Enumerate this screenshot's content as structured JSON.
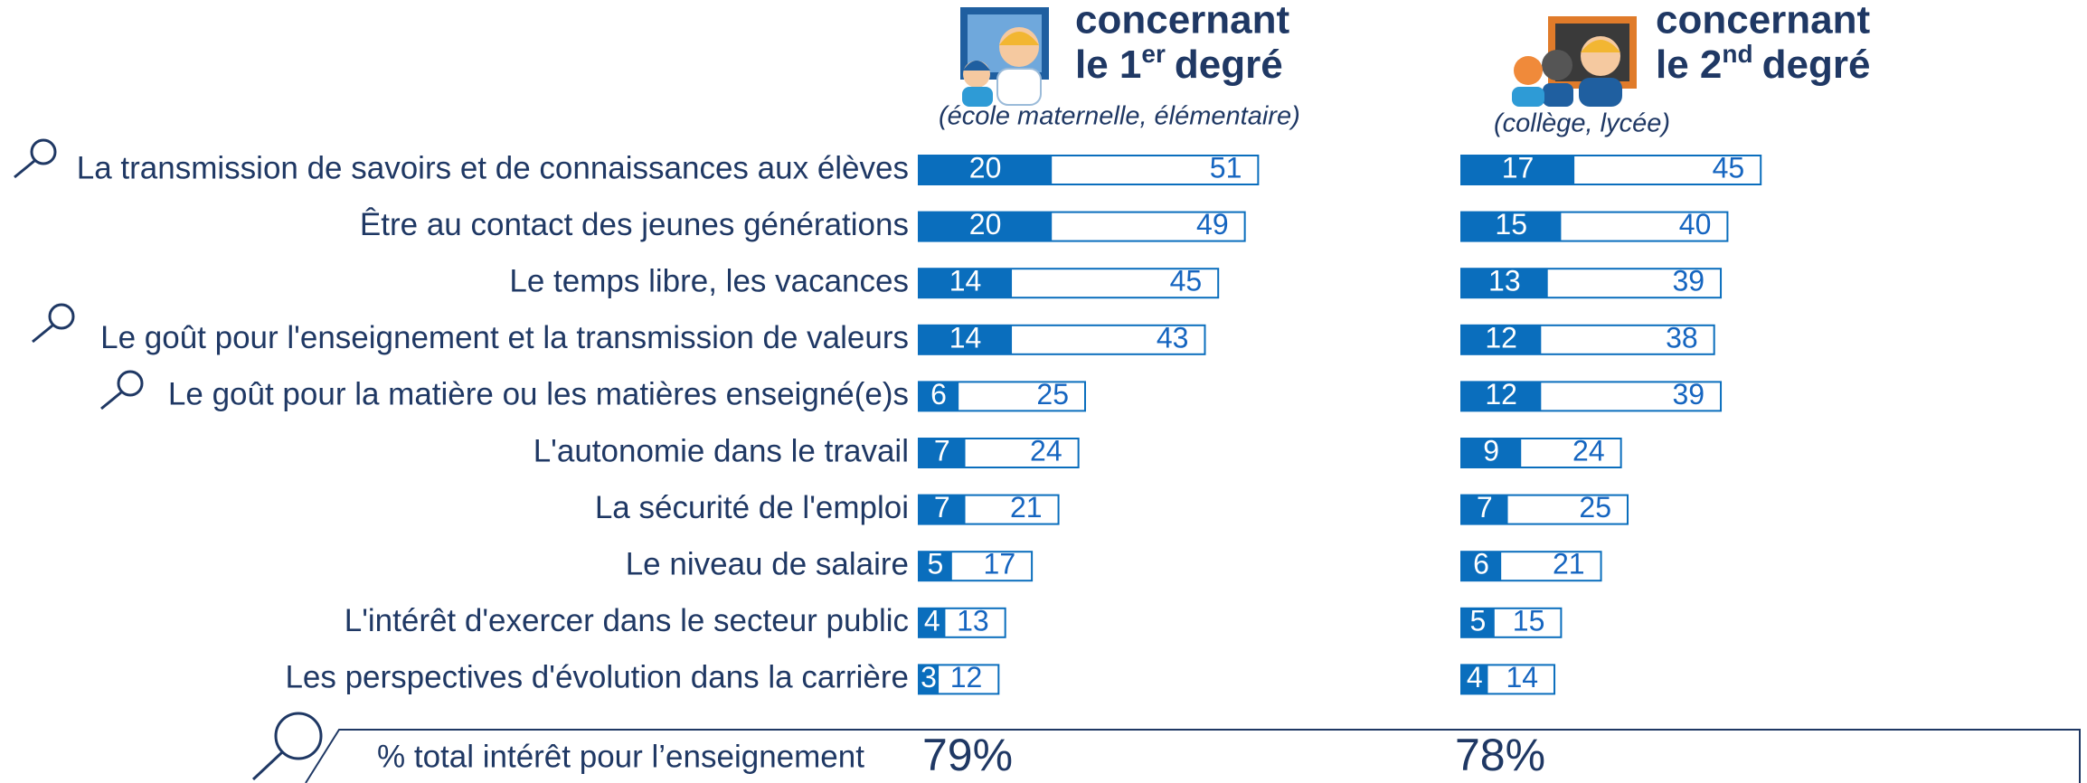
{
  "chart_data": {
    "type": "bar",
    "categories": [
      "La transmission de savoirs et de connaissances aux élèves",
      "Être au contact des jeunes générations",
      "Le temps libre, les vacances",
      "Le goût pour l'enseignement et la transmission de valeurs",
      "Le goût pour la matière ou les matières enseigné(e)s",
      "L'autonomie dans le travail",
      "La sécurité de l'emploi",
      "Le niveau de salaire",
      "L'intérêt d'exercer dans le secteur public",
      "Les perspectives d'évolution dans la carrière"
    ],
    "footer_label": "% total intérêt pour l’enseignement",
    "panels": [
      {
        "title": [
          "concernant",
          "le 1",
          "er",
          "degré"
        ],
        "subtitle": "(école maternelle, élémentaire)",
        "total": {
          "value": 79,
          "label": "79%"
        },
        "series": [
          {
            "color": "#0a6ebd",
            "values": [
              20,
              20,
              14,
              14,
              6,
              7,
              7,
              5,
              4,
              3
            ]
          },
          {
            "color": "#ffffff",
            "values": [
              51,
              49,
              45,
              43,
              25,
              24,
              21,
              17,
              13,
              12
            ]
          }
        ]
      },
      {
        "title": [
          "concernant",
          "le 2",
          "nd",
          "degré"
        ],
        "subtitle": "(collège, lycée)",
        "total": {
          "value": 78,
          "label": "78%"
        },
        "series": [
          {
            "color": "#0a6ebd",
            "values": [
              17,
              15,
              13,
              12,
              12,
              9,
              7,
              6,
              5,
              4
            ]
          },
          {
            "color": "#ffffff",
            "values": [
              45,
              40,
              39,
              38,
              39,
              24,
              25,
              21,
              15,
              14
            ]
          }
        ]
      }
    ]
  }
}
